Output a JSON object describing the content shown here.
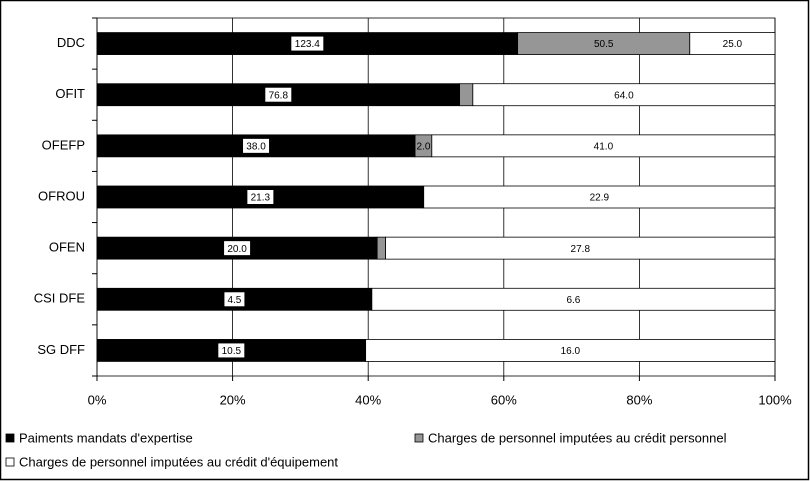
{
  "chart_data": {
    "type": "bar",
    "orientation": "horizontal",
    "stacked_percent": true,
    "categories": [
      "DDC",
      "OFIT",
      "OFEFP",
      "OFROU",
      "OFEN",
      "CSI DFE",
      "SG DFF"
    ],
    "series": [
      {
        "name": "Paiments mandats d'expertise",
        "color": "#000000",
        "values": [
          123.4,
          76.8,
          38,
          21.3,
          20,
          4.5,
          10.5
        ],
        "value_labels": [
          "123.4",
          "76.8",
          "38.0",
          "21.3",
          "20.0",
          "4.5",
          "10.5"
        ]
      },
      {
        "name": "Charges de personnel imputées au crédit personnel",
        "color": "#969696",
        "values": [
          50.5,
          2.8,
          2,
          0,
          0.6,
          0,
          0
        ],
        "value_labels": [
          "50.5",
          null,
          "2.0",
          null,
          null,
          null,
          null
        ]
      },
      {
        "name": "Charges de personnel imputées au crédit d'équipement",
        "color": "#ffffff",
        "values": [
          25,
          64,
          41,
          22.9,
          27.8,
          6.6,
          16
        ],
        "value_labels": [
          "25.0",
          "64.0",
          "41.0",
          "22.9",
          "27.8",
          "6.6",
          "16.0"
        ]
      }
    ],
    "xlim": [
      0,
      100
    ],
    "xticks": [
      {
        "value": 0,
        "label": "0%"
      },
      {
        "value": 20,
        "label": "20%"
      },
      {
        "value": 40,
        "label": "40%"
      },
      {
        "value": 60,
        "label": "60%"
      },
      {
        "value": 80,
        "label": "80%"
      },
      {
        "value": 100,
        "label": "100%"
      }
    ],
    "grid": true
  }
}
